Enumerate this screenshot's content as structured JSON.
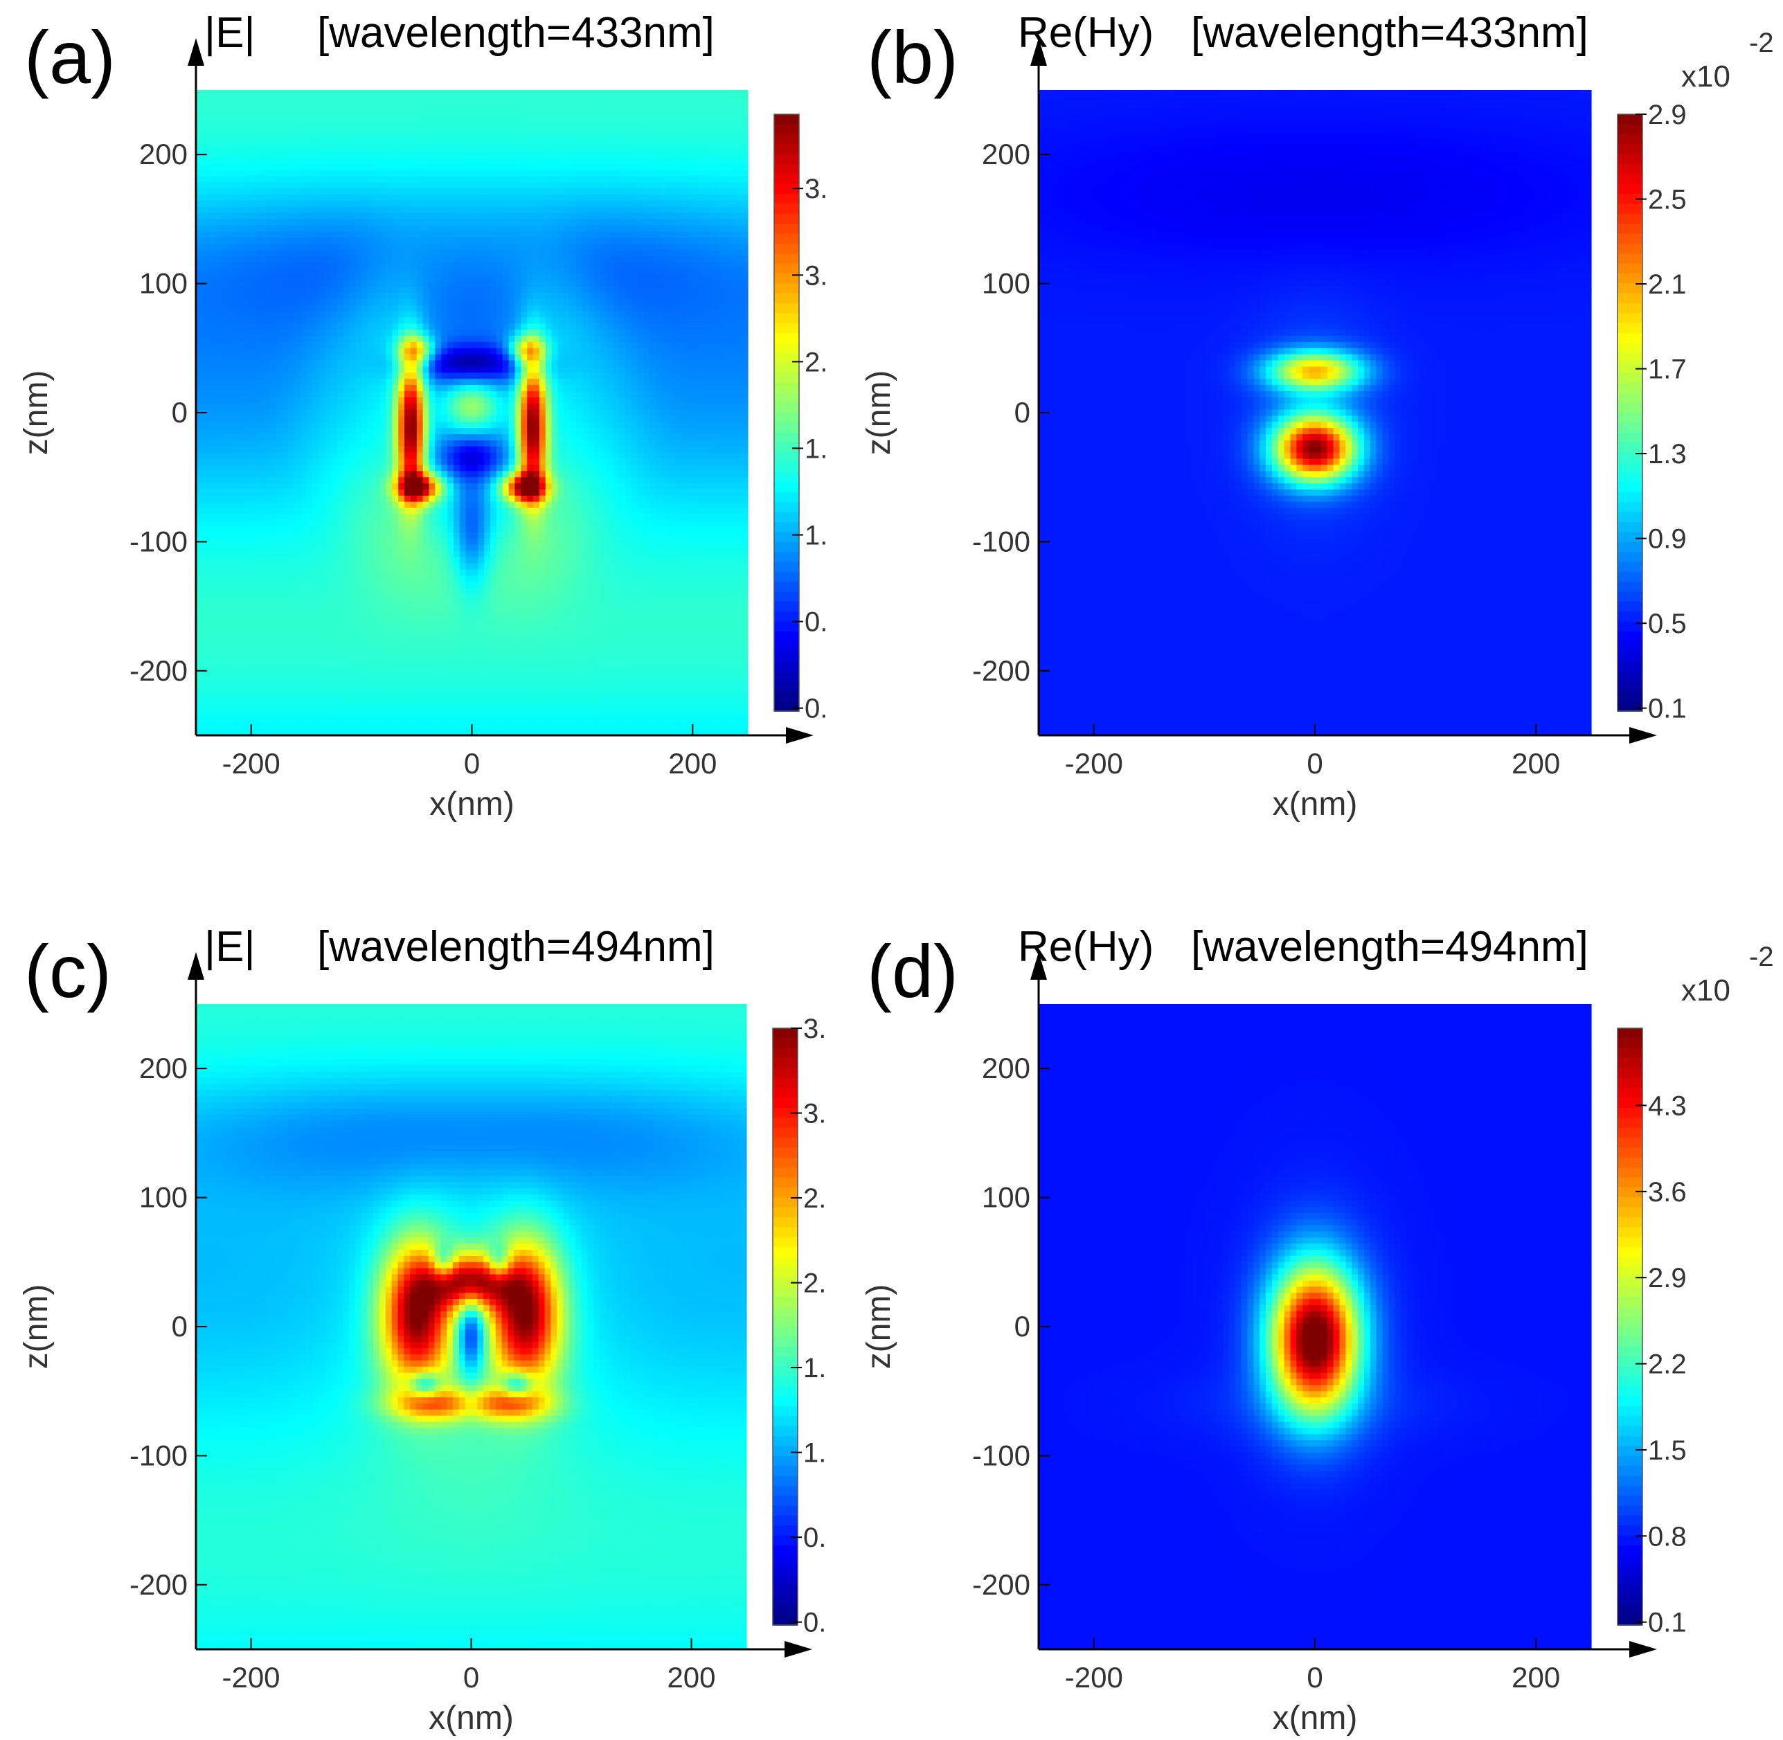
{
  "chart_data": [
    {
      "type": "heatmap",
      "panel_label": "(a)",
      "title_quantity": "|E|",
      "title_condition": "[wavelength=433nm]",
      "xlabel": "x(nm)",
      "ylabel": "z(nm)",
      "x_ticks": [
        "-200",
        "0",
        "200"
      ],
      "y_ticks": [
        "200",
        "100",
        "0",
        "-100",
        "-200"
      ],
      "xlim": [
        -250,
        250
      ],
      "ylim": [
        -250,
        250
      ],
      "colorscale": "jet",
      "colorbar_ticks": [
        "3.",
        "3.",
        "2.",
        "1.",
        "1.",
        "0.",
        "0."
      ],
      "colorbar_exponent": "",
      "colorbar_exponent_sup": "",
      "field": "E433"
    },
    {
      "type": "heatmap",
      "panel_label": "(b)",
      "title_quantity": "Re(Hy)",
      "title_condition": "[wavelength=433nm]",
      "xlabel": "x(nm)",
      "ylabel": "z(nm)",
      "x_ticks": [
        "-200",
        "0",
        "200"
      ],
      "y_ticks": [
        "200",
        "100",
        "0",
        "-100",
        "-200"
      ],
      "xlim": [
        -250,
        250
      ],
      "ylim": [
        -250,
        250
      ],
      "colorscale": "jet",
      "colorbar_ticks": [
        "2.9",
        "2.5",
        "2.1",
        "1.7",
        "1.3",
        "0.9",
        "0.5",
        "0.1"
      ],
      "colorbar_exponent": "x10",
      "colorbar_exponent_sup": "-2",
      "field": "H433"
    },
    {
      "type": "heatmap",
      "panel_label": "(c)",
      "title_quantity": "|E|",
      "title_condition": "[wavelength=494nm]",
      "xlabel": "x(nm)",
      "ylabel": "z(nm)",
      "x_ticks": [
        "-200",
        "0",
        "200"
      ],
      "y_ticks": [
        "200",
        "100",
        "0",
        "-100",
        "-200"
      ],
      "xlim": [
        -250,
        250
      ],
      "ylim": [
        -250,
        250
      ],
      "colorscale": "jet",
      "colorbar_ticks": [
        "3.",
        "3.",
        "2.",
        "2.",
        "1.",
        "1.",
        "0.",
        "0."
      ],
      "colorbar_exponent": "",
      "colorbar_exponent_sup": "",
      "field": "E494"
    },
    {
      "type": "heatmap",
      "panel_label": "(d)",
      "title_quantity": "Re(Hy)",
      "title_condition": "[wavelength=494nm]",
      "xlabel": "x(nm)",
      "ylabel": "z(nm)",
      "x_ticks": [
        "-200",
        "0",
        "200"
      ],
      "y_ticks": [
        "200",
        "100",
        "0",
        "-100",
        "-200"
      ],
      "xlim": [
        -250,
        250
      ],
      "ylim": [
        -250,
        250
      ],
      "colorscale": "jet",
      "colorbar_ticks": [
        "4.3",
        "3.6",
        "2.9",
        "2.2",
        "1.5",
        "0.8",
        "0.1"
      ],
      "colorbar_exponent": "x10",
      "colorbar_exponent_sup": "-2",
      "field": "H494"
    }
  ]
}
